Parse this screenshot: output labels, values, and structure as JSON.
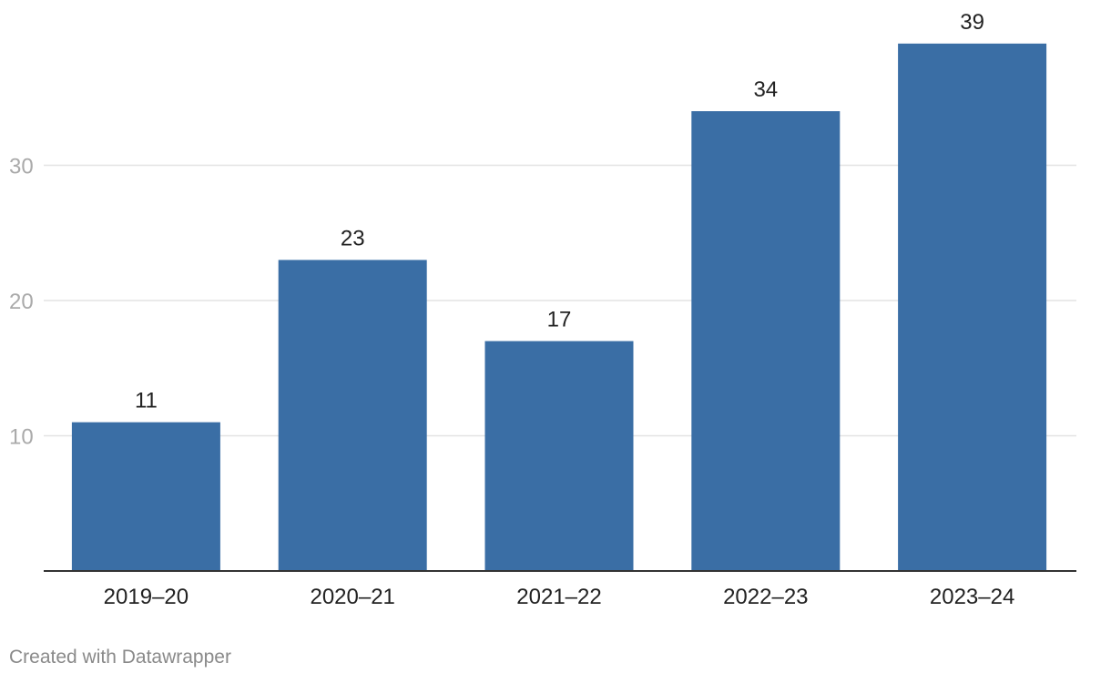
{
  "chart_data": {
    "type": "bar",
    "categories": [
      "2019–20",
      "2020–21",
      "2021–22",
      "2022–23",
      "2023–24"
    ],
    "values": [
      11,
      23,
      17,
      34,
      39
    ],
    "yticks": [
      10,
      20,
      30
    ],
    "ylim": [
      0,
      40
    ],
    "title": "",
    "xlabel": "",
    "ylabel": "",
    "grid": true,
    "bar_color": "#3a6ea5"
  },
  "footer": {
    "credit": "Created with Datawrapper"
  }
}
